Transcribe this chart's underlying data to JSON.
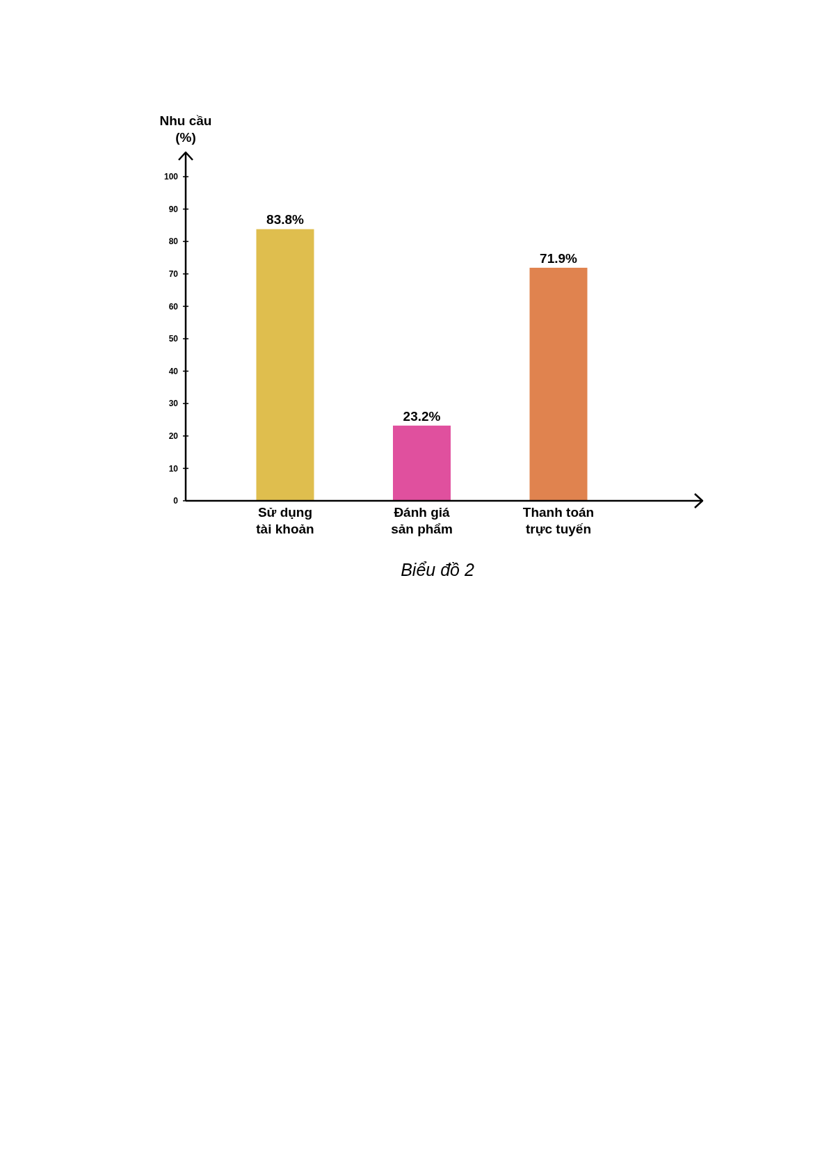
{
  "chart_data": {
    "type": "bar",
    "title": "Biểu đồ 2",
    "ylabel": "Nhu cầu (%)",
    "categories": [
      "Sử dụng tài khoản",
      "Đánh giá sản phẩm",
      "Thanh toán trực tuyến"
    ],
    "values": [
      83.8,
      23.2,
      71.9
    ],
    "colors": [
      "#dfbe4e",
      "#e0509e",
      "#e0834f"
    ],
    "value_labels": [
      "83.8%",
      "23.2%",
      "71.9%"
    ],
    "ylim": [
      0,
      100
    ],
    "yticks": [
      0,
      10,
      20,
      30,
      40,
      50,
      60,
      70,
      80,
      90,
      100
    ],
    "grid": false
  }
}
